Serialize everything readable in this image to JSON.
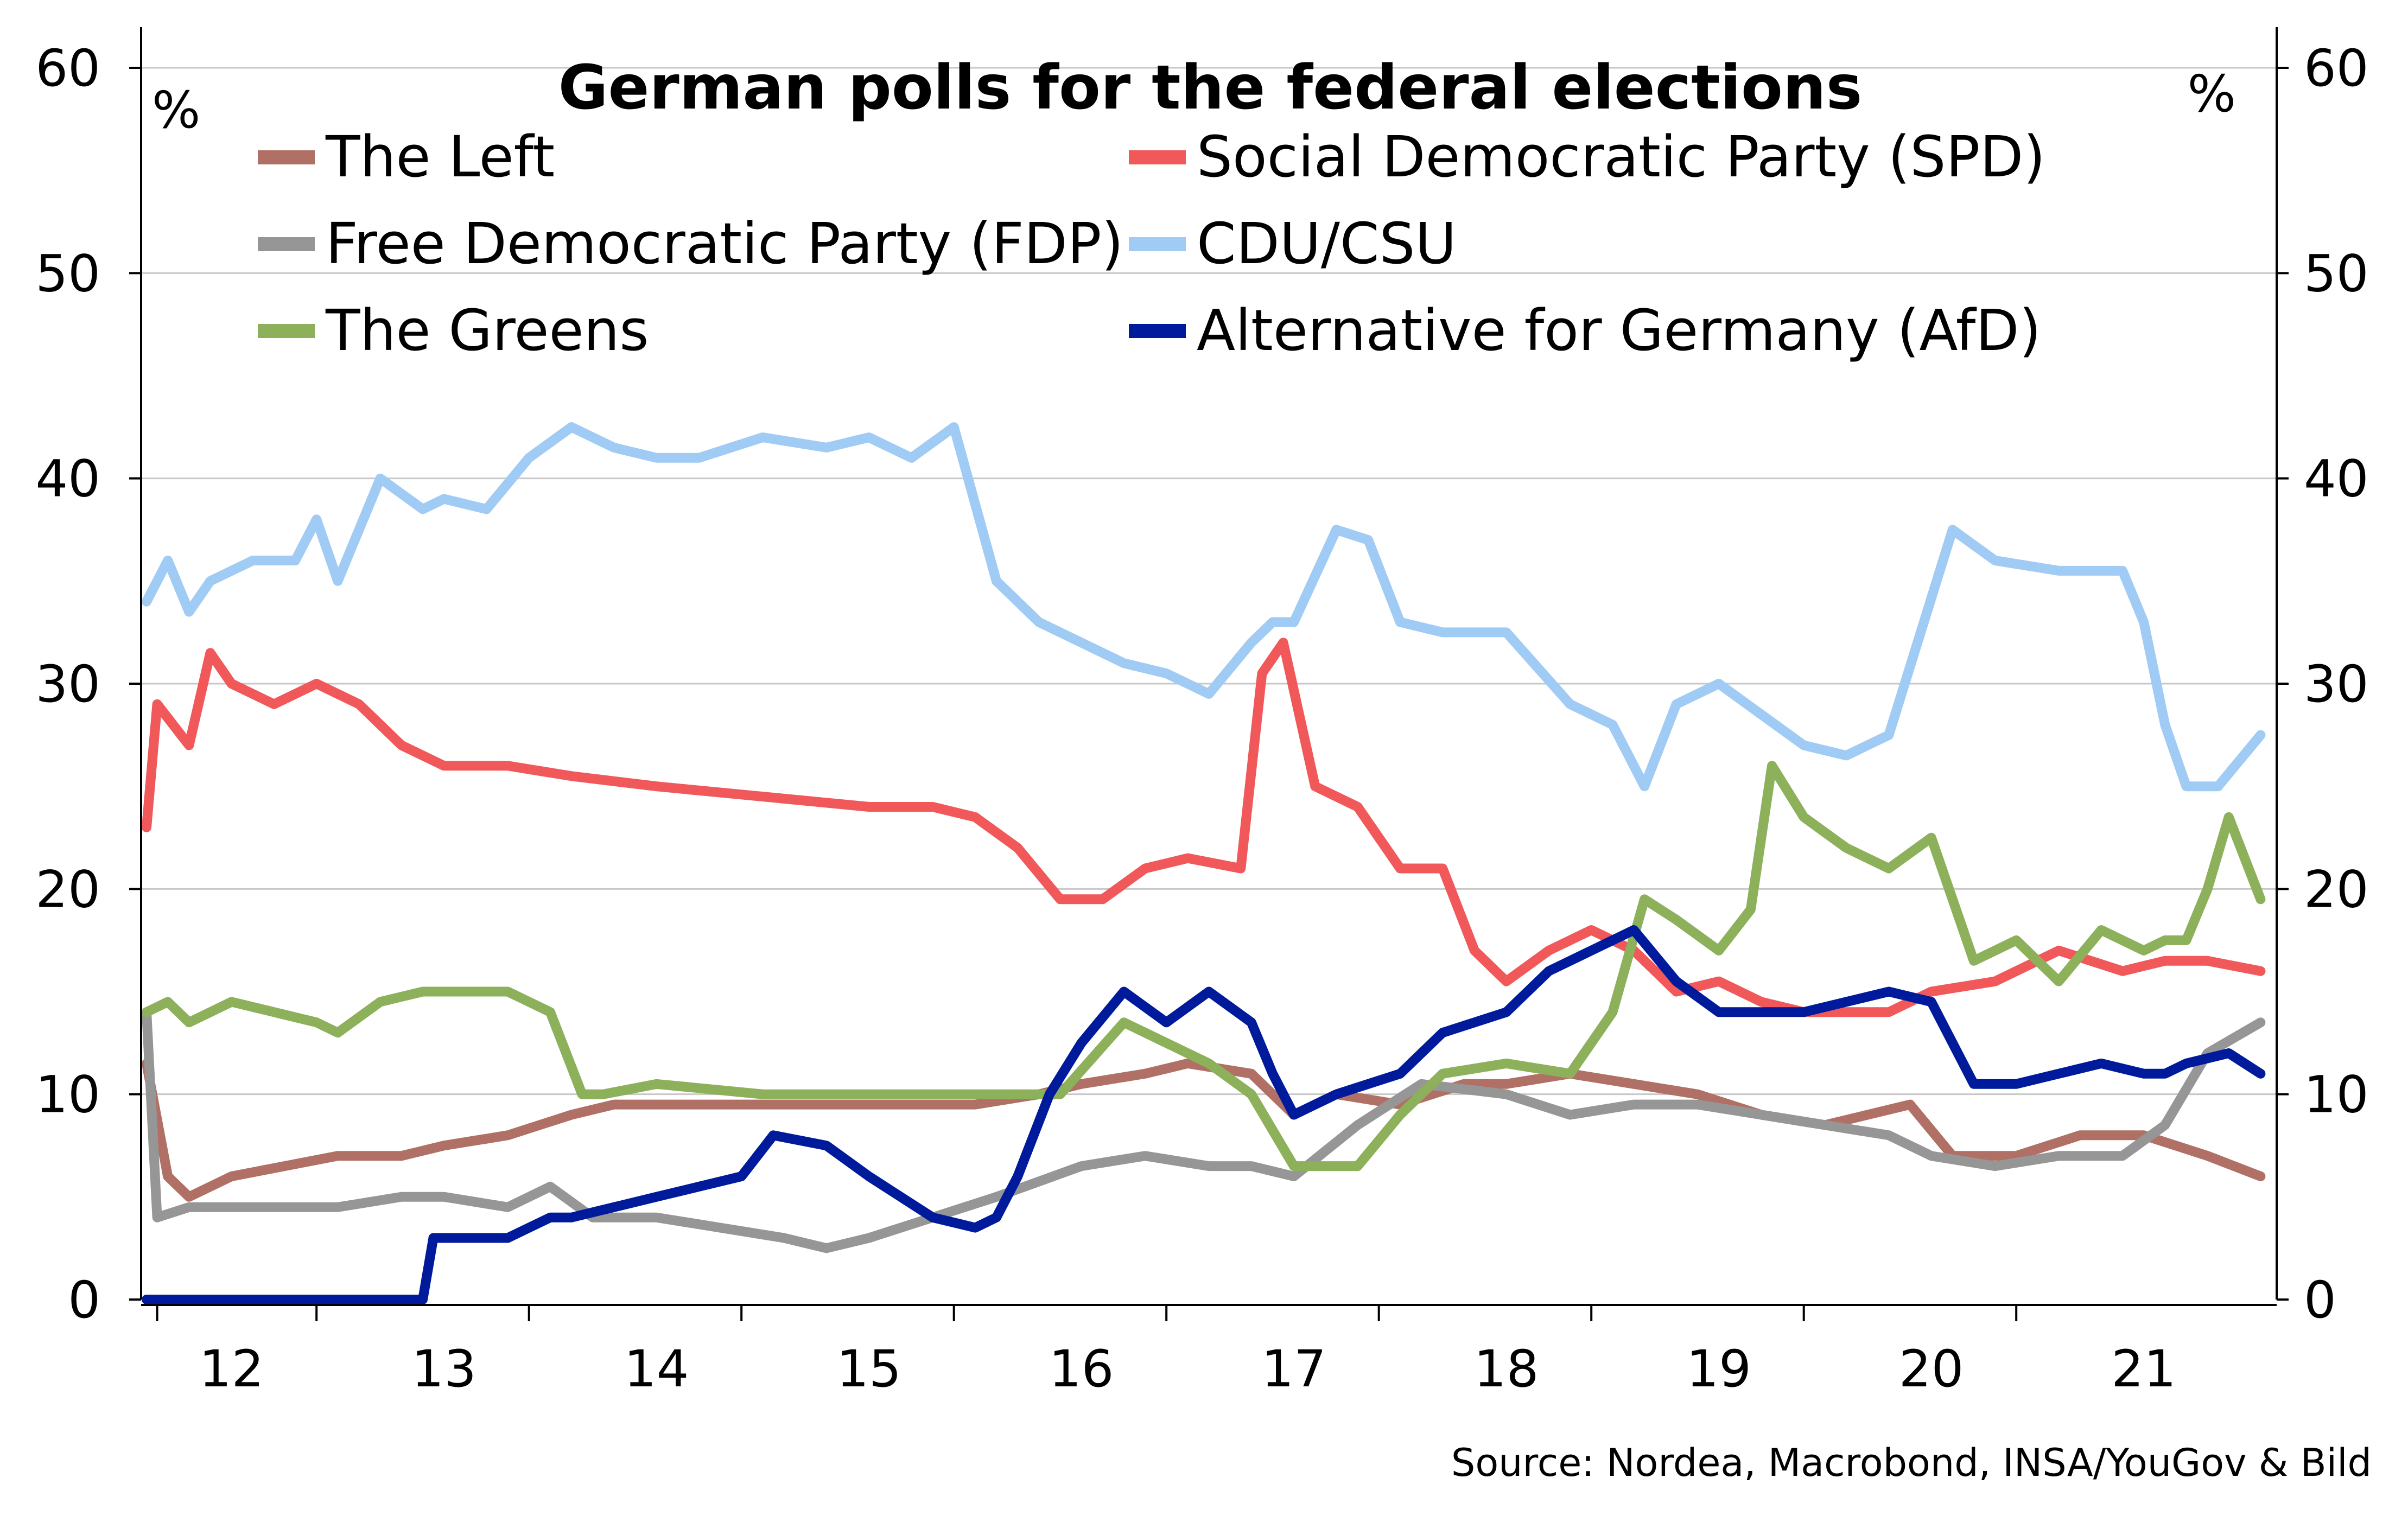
{
  "chart_data": {
    "type": "line",
    "title": "German polls for the federal elections",
    "y_unit_left": "%",
    "y_unit_right": "%",
    "source": "Source: Nordea, Macrobond, INSA/YouGov & Bild",
    "ylim": [
      0,
      60
    ],
    "yticks": [
      "0",
      "10",
      "20",
      "30",
      "40",
      "50",
      "60"
    ],
    "xlim": [
      2011.6,
      2021.6
    ],
    "xticks": [
      {
        "label": "12",
        "value": 2012.0
      },
      {
        "label": "13",
        "value": 2013.0
      },
      {
        "label": "14",
        "value": 2014.0
      },
      {
        "label": "15",
        "value": 2015.0
      },
      {
        "label": "16",
        "value": 2016.0
      },
      {
        "label": "17",
        "value": 2017.0
      },
      {
        "label": "18",
        "value": 2018.0
      },
      {
        "label": "19",
        "value": 2019.0
      },
      {
        "label": "20",
        "value": 2020.0
      },
      {
        "label": "21",
        "value": 2021.0
      }
    ],
    "grid": true,
    "legend_placement": "top",
    "series": [
      {
        "name": "The Left",
        "color": "#b07065",
        "x": [
          2011.6,
          2011.7,
          2011.8,
          2012.0,
          2012.5,
          2012.8,
          2013.0,
          2013.3,
          2013.6,
          2013.8,
          2014.0,
          2014.5,
          2015.0,
          2015.5,
          2015.8,
          2016.0,
          2016.3,
          2016.5,
          2016.8,
          2017.0,
          2017.2,
          2017.5,
          2017.8,
          2018.0,
          2018.3,
          2018.6,
          2018.9,
          2019.2,
          2019.5,
          2019.7,
          2019.9,
          2020.1,
          2020.4,
          2020.7,
          2021.0,
          2021.3,
          2021.55
        ],
        "y": [
          11.5,
          6,
          5,
          6,
          7,
          7,
          7.5,
          8,
          9,
          9.5,
          9.5,
          9.5,
          9.5,
          9.5,
          10,
          10.5,
          11,
          11.5,
          11,
          9,
          10,
          9.5,
          10.5,
          10.5,
          11,
          10.5,
          10,
          9,
          8.5,
          9,
          9.5,
          7,
          7,
          8,
          8,
          7,
          6
        ]
      },
      {
        "name": "Social Democratic Party (SPD)",
        "color": "#f0585a",
        "x": [
          2011.6,
          2011.65,
          2011.8,
          2011.9,
          2012.0,
          2012.2,
          2012.4,
          2012.6,
          2012.8,
          2013.0,
          2013.3,
          2013.6,
          2014.0,
          2014.5,
          2015.0,
          2015.3,
          2015.5,
          2015.7,
          2015.9,
          2016.1,
          2016.3,
          2016.5,
          2016.75,
          2016.85,
          2016.95,
          2017.1,
          2017.3,
          2017.5,
          2017.7,
          2017.85,
          2018.0,
          2018.2,
          2018.4,
          2018.6,
          2018.8,
          2019.0,
          2019.2,
          2019.4,
          2019.6,
          2019.8,
          2020.0,
          2020.3,
          2020.6,
          2020.9,
          2021.1,
          2021.3,
          2021.55
        ],
        "y": [
          23,
          29,
          27,
          31.5,
          30,
          29,
          30,
          29,
          27,
          26,
          26,
          25.5,
          25,
          24.5,
          24,
          24,
          23.5,
          22,
          19.5,
          19.5,
          21,
          21.5,
          21,
          30.5,
          32,
          25,
          24,
          21,
          21,
          17,
          15.5,
          17,
          18,
          17,
          15,
          15.5,
          14.5,
          14,
          14,
          14,
          15,
          15.5,
          17,
          16,
          16.5,
          16.5,
          16
        ]
      },
      {
        "name": "Free Democratic Party (FDP)",
        "color": "#969696",
        "x": [
          2011.6,
          2011.65,
          2011.8,
          2012.0,
          2012.5,
          2012.8,
          2013.0,
          2013.3,
          2013.5,
          2013.7,
          2014.0,
          2014.3,
          2014.6,
          2014.8,
          2015.0,
          2015.3,
          2015.6,
          2016.0,
          2016.3,
          2016.6,
          2016.8,
          2017.0,
          2017.3,
          2017.6,
          2018.0,
          2018.3,
          2018.6,
          2018.9,
          2019.2,
          2019.5,
          2019.8,
          2020.0,
          2020.3,
          2020.6,
          2020.9,
          2021.1,
          2021.3,
          2021.55
        ],
        "y": [
          14,
          4,
          4.5,
          4.5,
          4.5,
          5,
          5,
          4.5,
          5.5,
          4,
          4,
          3.5,
          3,
          2.5,
          3,
          4,
          5,
          6.5,
          7,
          6.5,
          6.5,
          6,
          8.5,
          10.5,
          10,
          9,
          9.5,
          9.5,
          9,
          8.5,
          8,
          7,
          6.5,
          7,
          7,
          8.5,
          12,
          13.5
        ]
      },
      {
        "name": "CDU/CSU",
        "color": "#9fcbf5",
        "x": [
          2011.6,
          2011.7,
          2011.8,
          2011.9,
          2012.1,
          2012.3,
          2012.4,
          2012.5,
          2012.7,
          2012.9,
          2013.0,
          2013.2,
          2013.4,
          2013.6,
          2013.8,
          2014.0,
          2014.2,
          2014.5,
          2014.8,
          2015.0,
          2015.2,
          2015.4,
          2015.6,
          2015.8,
          2016.0,
          2016.2,
          2016.4,
          2016.6,
          2016.8,
          2016.9,
          2017.0,
          2017.2,
          2017.35,
          2017.5,
          2017.7,
          2018.0,
          2018.3,
          2018.5,
          2018.65,
          2018.8,
          2019.0,
          2019.2,
          2019.4,
          2019.6,
          2019.8,
          2020.1,
          2020.3,
          2020.6,
          2020.9,
          2021.0,
          2021.1,
          2021.2,
          2021.35,
          2021.55
        ],
        "y": [
          34,
          36,
          33.5,
          35,
          36,
          36,
          38,
          35,
          40,
          38.5,
          39,
          38.5,
          41,
          42.5,
          41.5,
          41,
          41,
          42,
          41.5,
          42,
          41,
          42.5,
          35,
          33,
          32,
          31,
          30.5,
          29.5,
          32,
          33,
          33,
          37.5,
          37,
          33,
          32.5,
          32.5,
          29,
          28,
          25,
          29,
          30,
          28.5,
          27,
          26.5,
          27.5,
          37.5,
          36,
          35.5,
          35.5,
          33,
          28,
          25,
          25,
          27.5
        ]
      },
      {
        "name": "The Greens",
        "color": "#8db05a",
        "x": [
          2011.6,
          2011.7,
          2011.8,
          2012.0,
          2012.2,
          2012.4,
          2012.5,
          2012.7,
          2012.9,
          2013.1,
          2013.3,
          2013.5,
          2013.65,
          2013.75,
          2014.0,
          2014.5,
          2015.0,
          2015.5,
          2015.9,
          2016.2,
          2016.4,
          2016.6,
          2016.8,
          2017.0,
          2017.3,
          2017.5,
          2017.7,
          2018.0,
          2018.3,
          2018.5,
          2018.65,
          2018.8,
          2019.0,
          2019.15,
          2019.25,
          2019.4,
          2019.6,
          2019.8,
          2020.0,
          2020.2,
          2020.4,
          2020.6,
          2020.8,
          2021.0,
          2021.1,
          2021.2,
          2021.3,
          2021.4,
          2021.55
        ],
        "y": [
          14,
          14.5,
          13.5,
          14.5,
          14,
          13.5,
          13,
          14.5,
          15,
          15,
          15,
          14,
          10,
          10,
          10.5,
          10,
          10,
          10,
          10,
          13.5,
          12.5,
          11.5,
          10,
          6.5,
          6.5,
          9,
          11,
          11.5,
          11,
          14,
          19.5,
          18.5,
          17,
          19,
          26,
          23.5,
          22,
          21,
          22.5,
          16.5,
          17.5,
          15.5,
          18,
          17,
          17.5,
          17.5,
          20,
          23.5,
          19.5
        ]
      },
      {
        "name": "Alternative for Germany (AfD)",
        "color": "#001a9c",
        "x": [
          2011.6,
          2012.0,
          2012.5,
          2012.9,
          2012.95,
          2013.0,
          2013.3,
          2013.5,
          2013.6,
          2013.8,
          2014.0,
          2014.2,
          2014.4,
          2014.55,
          2014.8,
          2015.0,
          2015.3,
          2015.5,
          2015.6,
          2015.7,
          2015.85,
          2016.0,
          2016.2,
          2016.4,
          2016.6,
          2016.8,
          2016.9,
          2017.0,
          2017.2,
          2017.5,
          2017.7,
          2018.0,
          2018.2,
          2018.4,
          2018.6,
          2018.8,
          2019.0,
          2019.2,
          2019.4,
          2019.6,
          2019.8,
          2020.0,
          2020.2,
          2020.4,
          2020.6,
          2020.8,
          2021.0,
          2021.1,
          2021.2,
          2021.4,
          2021.55
        ],
        "y": [
          0,
          0,
          0,
          0,
          3,
          3,
          3,
          4,
          4,
          4.5,
          5,
          5.5,
          6,
          8,
          7.5,
          6,
          4,
          3.5,
          4,
          6,
          10,
          12.5,
          15,
          13.5,
          15,
          13.5,
          11,
          9,
          10,
          11,
          13,
          14,
          16,
          17,
          18,
          15.5,
          14,
          14,
          14,
          14.5,
          15,
          14.5,
          10.5,
          10.5,
          11,
          11.5,
          11,
          11,
          11.5,
          12,
          11
        ]
      }
    ]
  }
}
